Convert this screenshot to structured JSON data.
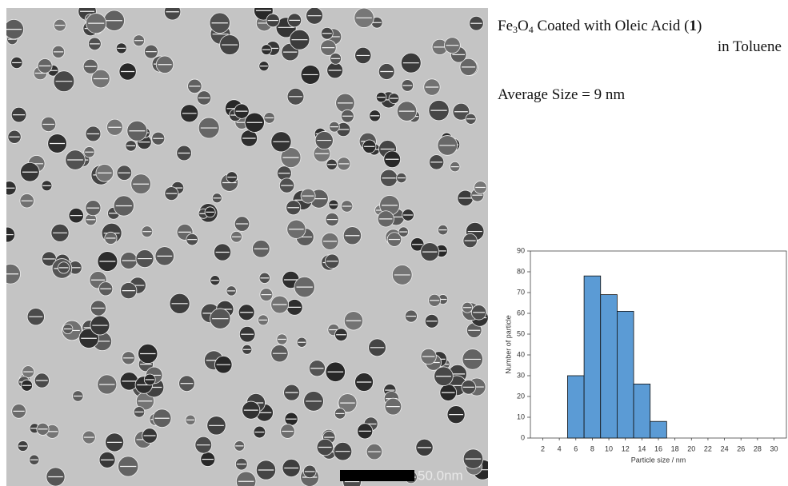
{
  "caption": {
    "formula_fe": "Fe",
    "formula_fe_sub": "3",
    "formula_o": "O",
    "formula_o_sub": "4",
    "line1_rest": " Coated with Oleic Acid (",
    "compound_ref": "1",
    "line1_close": ")",
    "line2": "in Toluene",
    "average": "Average Size = 9 nm"
  },
  "tem_image": {
    "scale_label": "50.0nm"
  },
  "chart_data": {
    "type": "histogram",
    "bins": [
      5,
      7,
      9,
      11,
      13,
      15,
      17
    ],
    "values": [
      30,
      78,
      69,
      61,
      26,
      8
    ],
    "color": "#5b9bd5",
    "xlim": [
      0.5,
      31.5
    ],
    "ylim": [
      0,
      90
    ],
    "xticks": [
      2,
      4,
      6,
      8,
      10,
      12,
      14,
      16,
      18,
      20,
      22,
      24,
      26,
      28,
      30
    ],
    "yticks": [
      0,
      10,
      20,
      30,
      40,
      50,
      60,
      70,
      80,
      90
    ],
    "xlabel": "Particle size / nm",
    "ylabel": "Number of particle"
  }
}
